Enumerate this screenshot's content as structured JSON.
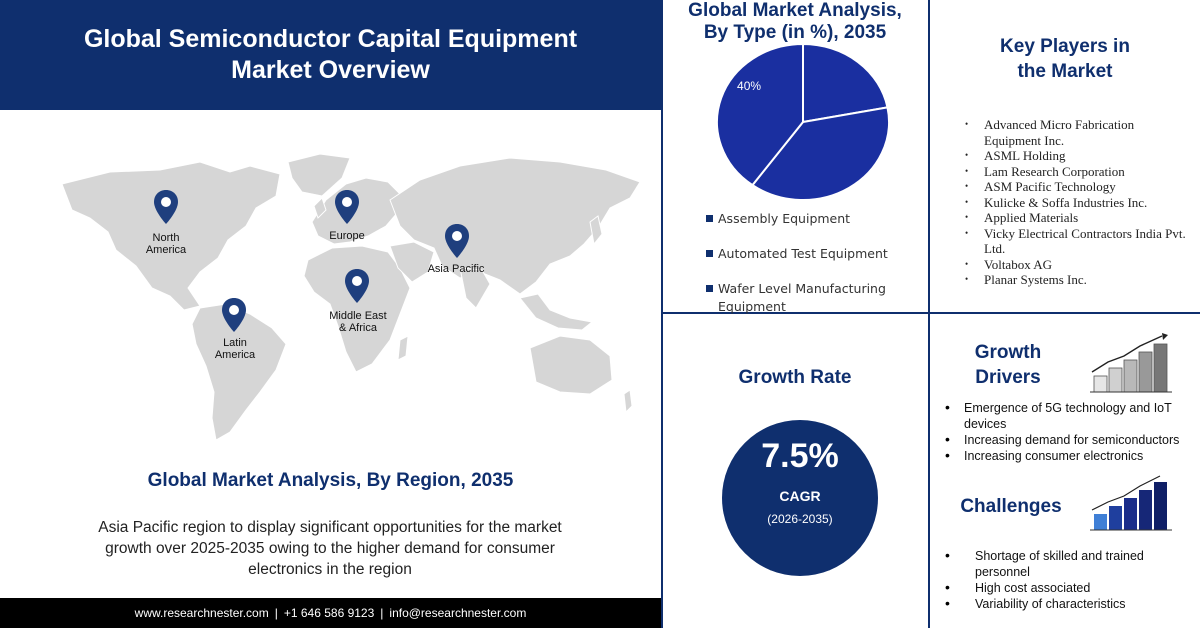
{
  "header": {
    "title_line1": "Global Semiconductor Capital Equipment",
    "title_line2": "Market Overview"
  },
  "regions": {
    "north_america": "North America",
    "europe": "Europe",
    "asia_pacific": "Asia Pacific",
    "middle_east_africa": "Middle East & Africa",
    "latin_america": "Latin America"
  },
  "region_section": {
    "title": "Global Market Analysis, By Region, 2035",
    "description": "Asia Pacific region to display significant opportunities for the market growth over 2025-2035 owing to the higher demand for consumer electronics in the region"
  },
  "footer": {
    "website": "www.researchnester.com",
    "phone": "+1 646 586 9123",
    "email": "info@researchnester.com",
    "separator": "|"
  },
  "type_section": {
    "title_line1": "Global Market Analysis,",
    "title_line2": "By Type (in %), 2035"
  },
  "chart_data": {
    "type": "pie",
    "title": "Global Market Analysis, By Type (in %), 2035",
    "categories": [
      "Assembly Equipment",
      "Automated Test Equipment",
      "Wafer Level Manufacturing Equipment"
    ],
    "values": [
      40,
      38,
      22
    ],
    "data_labels": [
      "40%",
      "",
      ""
    ],
    "legend_position": "bottom"
  },
  "key_players": {
    "title_line1": "Key Players in",
    "title_line2": "the Market",
    "items": [
      "Advanced Micro Fabrication Equipment Inc.",
      "ASML Holding",
      "Lam Research Corporation",
      "ASM Pacific Technology",
      "Kulicke & Soffa Industries Inc.",
      "Applied Materials",
      "Vicky Electrical Contractors India Pvt. Ltd.",
      "Voltabox AG",
      "Planar Systems Inc."
    ]
  },
  "growth_rate": {
    "title": "Growth Rate",
    "value": "7.5%",
    "label": "CAGR",
    "period": "(2026-2035)"
  },
  "growth_drivers": {
    "title_line1": "Growth",
    "title_line2": "Drivers",
    "items": [
      "Emergence of 5G technology and IoT devices",
      "Increasing demand for semiconductors",
      "Increasing consumer electronics"
    ]
  },
  "challenges": {
    "title": "Challenges",
    "items": [
      "Shortage of skilled and trained personnel",
      "High cost associated",
      "Variability of characteristics"
    ]
  },
  "colors": {
    "navy": "#0f2f6e",
    "pie_blue": "#1a2fa0",
    "map_gray": "#d6d6d6",
    "pin": "#1f3f7e"
  }
}
